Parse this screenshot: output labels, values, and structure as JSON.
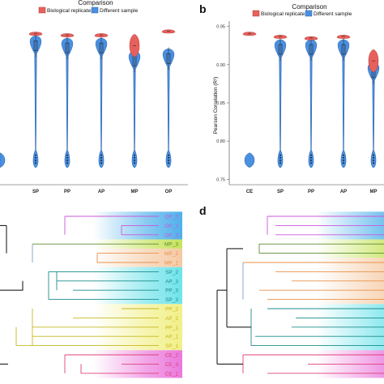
{
  "panels": {
    "a": {
      "letter": ""
    },
    "b": {
      "letter": "b"
    },
    "c": {
      "letter": ""
    },
    "d": {
      "letter": "d"
    }
  },
  "legend": {
    "title": "Comparison",
    "items": [
      {
        "label": "Biological replicate",
        "color": "#e8605d"
      },
      {
        "label": "Different sample",
        "color": "#4a90e2"
      }
    ]
  },
  "chart_data": [
    {
      "type": "violin",
      "panel": "a",
      "categories": [
        "SP",
        "PP",
        "AP",
        "MP",
        "OP"
      ],
      "ylim": [
        0.745,
        0.955
      ],
      "series": [
        {
          "name": "Biological replicate",
          "color": "#e8605d",
          "values": [
            0.941,
            0.939,
            0.939,
            0.925,
            0.944
          ]
        },
        {
          "name": "Different sample",
          "color": "#4a90e2",
          "values": [
            0.925,
            0.922,
            0.922,
            0.905,
            0.908
          ]
        }
      ],
      "partial_left_category_value": 0.775
    },
    {
      "type": "violin",
      "panel": "b",
      "categories": [
        "CE",
        "SP",
        "PP",
        "AP",
        "MP"
      ],
      "ylabel": "Pearson Correlation (R²)",
      "yticks": [
        0.75,
        0.8,
        0.85,
        0.9,
        0.95
      ],
      "ytick_labels": [
        "0.75",
        "0.80",
        "0.85",
        "0.90",
        "0.95"
      ],
      "ylim": [
        0.745,
        0.955
      ],
      "series": [
        {
          "name": "Biological replicate",
          "color": "#e8605d",
          "values": [
            0.941,
            0.937,
            0.935,
            0.937,
            0.905
          ]
        },
        {
          "name": "Different sample",
          "color": "#4a90e2",
          "values": [
            0.775,
            0.92,
            0.92,
            0.92,
            0.89
          ]
        }
      ]
    },
    {
      "type": "dendrogram",
      "panel": "c",
      "leaves": [
        {
          "label": "OP_2",
          "color": "#cc55dd"
        },
        {
          "label": "OP_1",
          "color": "#cc55dd"
        },
        {
          "label": "OP_3",
          "color": "#cc55dd"
        },
        {
          "label": "MP_3",
          "color": "#5c8a2e"
        },
        {
          "label": "MP_2",
          "color": "#e8924a"
        },
        {
          "label": "MP_1",
          "color": "#e8924a"
        },
        {
          "label": "SP_2",
          "color": "#1c8c8c"
        },
        {
          "label": "AP_3",
          "color": "#1c8c8c"
        },
        {
          "label": "PP_3",
          "color": "#1c8c8c"
        },
        {
          "label": "SP_3",
          "color": "#1c8c8c"
        },
        {
          "label": "PP_2",
          "color": "#c8b820"
        },
        {
          "label": "AP_2",
          "color": "#c8b820"
        },
        {
          "label": "PP_1",
          "color": "#c8b820"
        },
        {
          "label": "AP_1",
          "color": "#c8b820"
        },
        {
          "label": "SP_1",
          "color": "#c8b820"
        },
        {
          "label": "CE_2",
          "color": "#e0407a"
        },
        {
          "label": "CE_3",
          "color": "#e0407a"
        },
        {
          "label": "CE_1",
          "color": "#e0407a"
        }
      ]
    },
    {
      "type": "dendrogram",
      "panel": "d",
      "leaves": []
    }
  ]
}
